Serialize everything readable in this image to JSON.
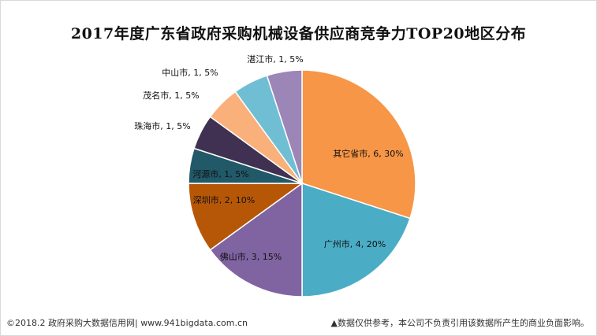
{
  "chart_data": {
    "type": "pie",
    "title": "2017年度广东省政府采购机械设备供应商竞争力TOP20地区分布",
    "slices": [
      {
        "label": "其它省市, 6, 30%",
        "name": "其它省市",
        "value": 6,
        "percent": 30,
        "color": "#f79646"
      },
      {
        "label": "广州市, 4, 20%",
        "name": "广州市",
        "value": 4,
        "percent": 20,
        "color": "#4bacc6"
      },
      {
        "label": "佛山市, 3, 15%",
        "name": "佛山市",
        "value": 3,
        "percent": 15,
        "color": "#8064a2"
      },
      {
        "label": "深圳市, 2, 10%",
        "name": "深圳市",
        "value": 2,
        "percent": 10,
        "color": "#b65708"
      },
      {
        "label": "河源市, 1, 5%",
        "name": "河源市",
        "value": 1,
        "percent": 5,
        "color": "#215968"
      },
      {
        "label": "珠海市, 1, 5%",
        "name": "珠海市",
        "value": 1,
        "percent": 5,
        "color": "#403152"
      },
      {
        "label": "茂名市, 1, 5%",
        "name": "茂名市",
        "value": 1,
        "percent": 5,
        "color": "#fab07a"
      },
      {
        "label": "中山市, 1, 5%",
        "name": "中山市",
        "value": 1,
        "percent": 5,
        "color": "#70bed3"
      },
      {
        "label": "湛江市, 1, 5%",
        "name": "湛江市",
        "value": 1,
        "percent": 5,
        "color": "#9c86b8"
      }
    ]
  },
  "footer": {
    "left": "©2018.2 政府采购大数据信用网| www.941bigdata.com.cn",
    "right": "▲数据仅供参考，本公司不负责引用该数据所产生的商业负面影响。"
  }
}
